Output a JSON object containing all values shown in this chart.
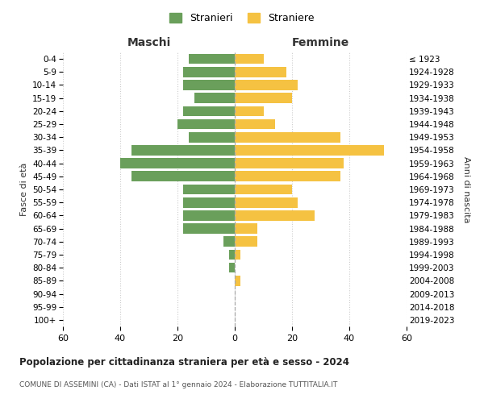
{
  "age_groups": [
    "0-4",
    "5-9",
    "10-14",
    "15-19",
    "20-24",
    "25-29",
    "30-34",
    "35-39",
    "40-44",
    "45-49",
    "50-54",
    "55-59",
    "60-64",
    "65-69",
    "70-74",
    "75-79",
    "80-84",
    "85-89",
    "90-94",
    "95-99",
    "100+"
  ],
  "birth_years": [
    "2019-2023",
    "2014-2018",
    "2009-2013",
    "2004-2008",
    "1999-2003",
    "1994-1998",
    "1989-1993",
    "1984-1988",
    "1979-1983",
    "1974-1978",
    "1969-1973",
    "1964-1968",
    "1959-1963",
    "1954-1958",
    "1949-1953",
    "1944-1948",
    "1939-1943",
    "1934-1938",
    "1929-1933",
    "1924-1928",
    "≤ 1923"
  ],
  "maschi": [
    16,
    18,
    18,
    14,
    18,
    20,
    16,
    36,
    40,
    36,
    18,
    18,
    18,
    18,
    4,
    2,
    2,
    0,
    0,
    0,
    0
  ],
  "femmine": [
    10,
    18,
    22,
    20,
    10,
    14,
    37,
    52,
    38,
    37,
    20,
    22,
    28,
    8,
    8,
    2,
    0,
    2,
    0,
    0,
    0
  ],
  "male_color": "#6a9f5b",
  "female_color": "#f5c242",
  "title": "Popolazione per cittadinanza straniera per età e sesso - 2024",
  "subtitle": "COMUNE DI ASSEMINI (CA) - Dati ISTAT al 1° gennaio 2024 - Elaborazione TUTTITALIA.IT",
  "xlabel_left": "Maschi",
  "xlabel_right": "Femmine",
  "ylabel_left": "Fasce di età",
  "ylabel_right": "Anni di nascita",
  "legend_stranieri": "Stranieri",
  "legend_straniere": "Straniere",
  "xlim": 60,
  "background_color": "#ffffff",
  "grid_color": "#cccccc"
}
